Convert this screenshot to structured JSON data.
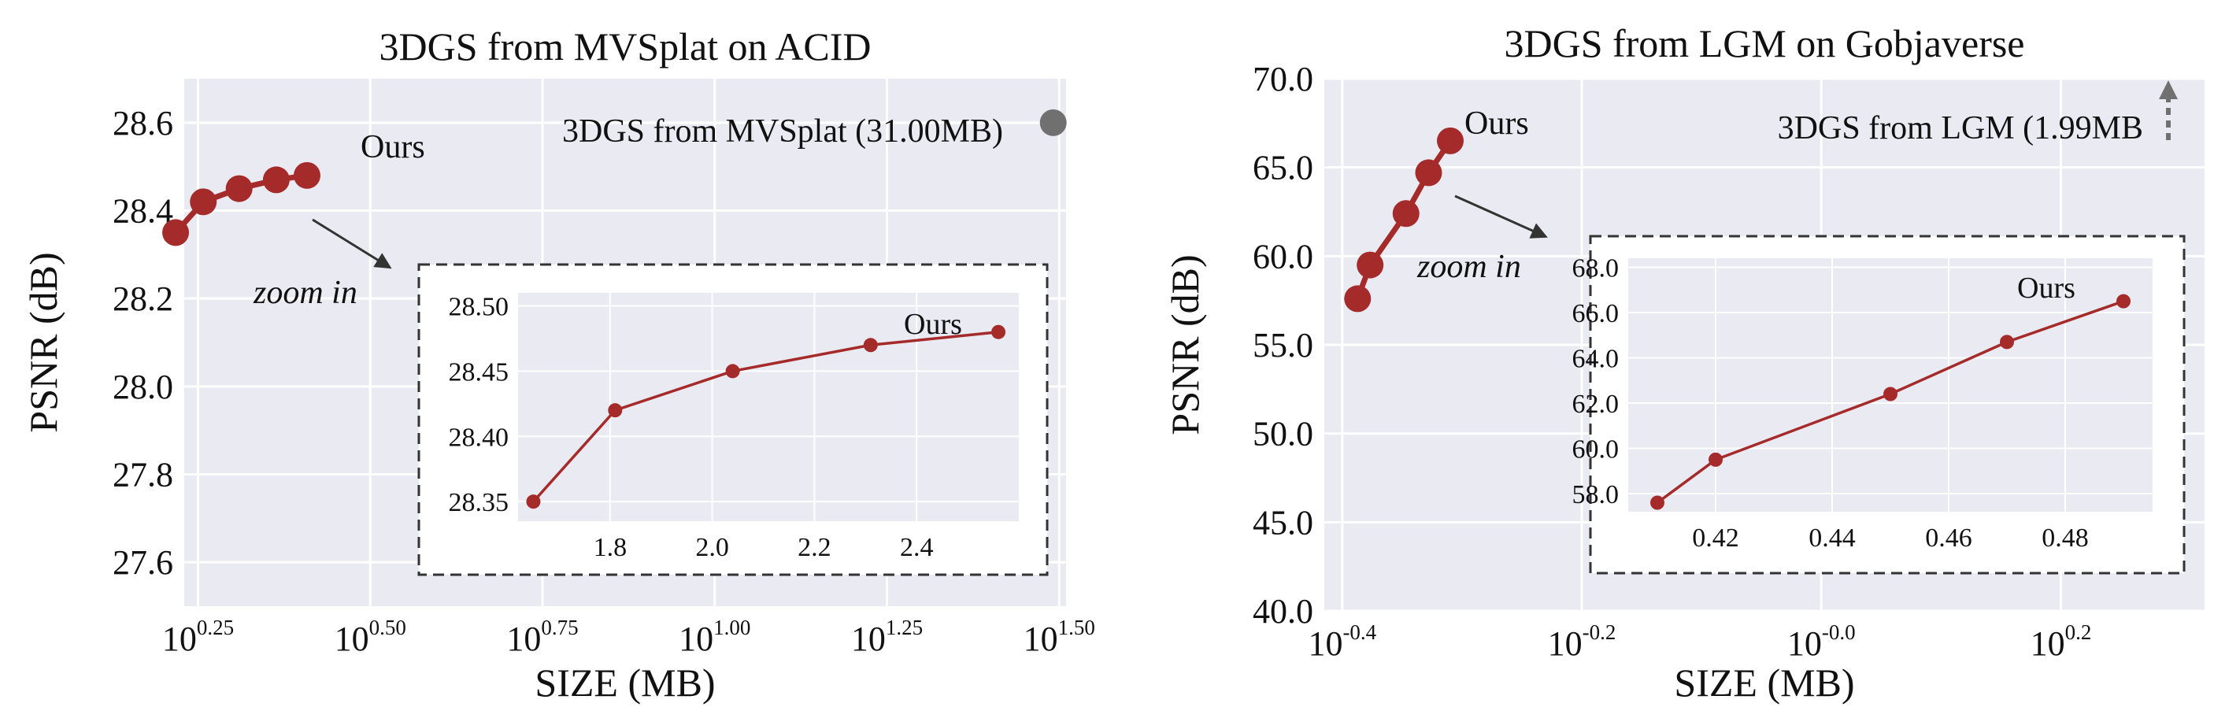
{
  "colors": {
    "plot_bg": "#eaeaf2",
    "grid": "#ffffff",
    "series": "#a52a2a",
    "reference": "#707070",
    "inset_frame": "#333333",
    "text": "#111111"
  },
  "chart_data": [
    {
      "type": "line",
      "title": "3DGS from MVSplat on ACID",
      "xlabel": "SIZE (MB)",
      "ylabel": "PSNR (dB)",
      "x_scale": "log10",
      "xlim_exp": [
        0.23,
        1.51
      ],
      "ylim": [
        27.5,
        28.7
      ],
      "x_tick_labels": [
        {
          "exp": 0.25,
          "base": "10",
          "sup": "0.25"
        },
        {
          "exp": 0.5,
          "base": "10",
          "sup": "0.50"
        },
        {
          "exp": 0.75,
          "base": "10",
          "sup": "0.75"
        },
        {
          "exp": 1.0,
          "base": "10",
          "sup": "1.00"
        },
        {
          "exp": 1.25,
          "base": "10",
          "sup": "1.25"
        },
        {
          "exp": 1.5,
          "base": "10",
          "sup": "1.50"
        }
      ],
      "y_ticks": [
        27.6,
        27.8,
        28.0,
        28.2,
        28.4,
        28.6
      ],
      "y_tick_labels": [
        "27.6",
        "27.8",
        "28.0",
        "28.2",
        "28.4",
        "28.6"
      ],
      "grid": true,
      "series": [
        {
          "name": "Ours",
          "x": [
            1.65,
            1.81,
            2.04,
            2.31,
            2.56
          ],
          "y": [
            28.35,
            28.42,
            28.45,
            28.47,
            28.48
          ]
        }
      ],
      "reference_point": {
        "label": "3DGS from MVSplat (31.00MB)",
        "x": 31.0,
        "y": 28.6
      },
      "annotations": {
        "series_label": "Ours",
        "zoom_label": "zoom in"
      },
      "inset": {
        "xlim": [
          1.62,
          2.6
        ],
        "ylim": [
          28.335,
          28.51
        ],
        "x_ticks": [
          1.8,
          2.0,
          2.2,
          2.4
        ],
        "x_tick_labels": [
          "1.8",
          "2.0",
          "2.2",
          "2.4"
        ],
        "y_ticks": [
          28.35,
          28.4,
          28.45,
          28.5
        ],
        "y_tick_labels": [
          "28.35",
          "28.40",
          "28.45",
          "28.50"
        ],
        "label": "Ours"
      }
    },
    {
      "type": "line",
      "title": "3DGS from LGM on Gobjaverse",
      "xlabel": "SIZE (MB)",
      "ylabel": "PSNR (dB)",
      "x_scale": "log10",
      "xlim_exp": [
        -0.415,
        0.32
      ],
      "ylim": [
        40.0,
        70.0
      ],
      "x_tick_labels": [
        {
          "exp": -0.4,
          "base": "10",
          "sup": "-0.4"
        },
        {
          "exp": -0.2,
          "base": "10",
          "sup": "-0.2"
        },
        {
          "exp": 0.0,
          "base": "10",
          "sup": "-0.0"
        },
        {
          "exp": 0.2,
          "base": "10",
          "sup": "0.2"
        }
      ],
      "y_ticks": [
        40,
        45,
        50,
        55,
        60,
        65,
        70
      ],
      "y_tick_labels": [
        "40.0",
        "45.0",
        "50.0",
        "55.0",
        "60.0",
        "65.0",
        "70.0"
      ],
      "grid": true,
      "series": [
        {
          "name": "Ours",
          "x": [
            0.41,
            0.42,
            0.45,
            0.47,
            0.49
          ],
          "y": [
            57.6,
            59.5,
            62.4,
            64.7,
            66.5
          ]
        }
      ],
      "reference_point": {
        "label": "3DGS from LGM (1.99MB",
        "x": 1.99,
        "direction": "up",
        "offscale": true
      },
      "annotations": {
        "series_label": "Ours",
        "zoom_label": "zoom in"
      },
      "inset": {
        "xlim": [
          0.405,
          0.495
        ],
        "ylim": [
          57.2,
          68.4
        ],
        "x_ticks": [
          0.42,
          0.44,
          0.46,
          0.48
        ],
        "x_tick_labels": [
          "0.42",
          "0.44",
          "0.46",
          "0.48"
        ],
        "y_ticks": [
          58,
          60,
          62,
          64,
          66,
          68
        ],
        "y_tick_labels": [
          "58.0",
          "60.0",
          "62.0",
          "64.0",
          "66.0",
          "68.0"
        ],
        "label": "Ours"
      }
    }
  ]
}
